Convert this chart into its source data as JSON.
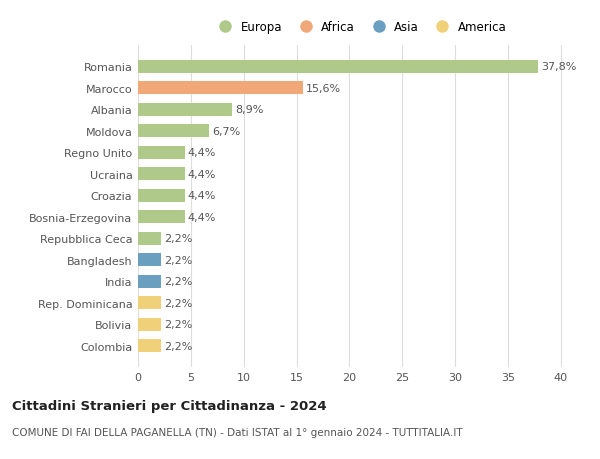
{
  "countries": [
    "Romania",
    "Marocco",
    "Albania",
    "Moldova",
    "Regno Unito",
    "Ucraina",
    "Croazia",
    "Bosnia-Erzegovina",
    "Repubblica Ceca",
    "Bangladesh",
    "India",
    "Rep. Dominicana",
    "Bolivia",
    "Colombia"
  ],
  "values": [
    37.8,
    15.6,
    8.9,
    6.7,
    4.4,
    4.4,
    4.4,
    4.4,
    2.2,
    2.2,
    2.2,
    2.2,
    2.2,
    2.2
  ],
  "labels": [
    "37,8%",
    "15,6%",
    "8,9%",
    "6,7%",
    "4,4%",
    "4,4%",
    "4,4%",
    "4,4%",
    "2,2%",
    "2,2%",
    "2,2%",
    "2,2%",
    "2,2%",
    "2,2%"
  ],
  "colors": [
    "#aec98a",
    "#f0a878",
    "#aec98a",
    "#aec98a",
    "#aec98a",
    "#aec98a",
    "#aec98a",
    "#aec98a",
    "#aec98a",
    "#6a9fc0",
    "#6a9fc0",
    "#f0d078",
    "#f0d078",
    "#f0d078"
  ],
  "legend_labels": [
    "Europa",
    "Africa",
    "Asia",
    "America"
  ],
  "legend_colors": [
    "#aec98a",
    "#f0a878",
    "#6a9fc0",
    "#f0d078"
  ],
  "title": "Cittadini Stranieri per Cittadinanza - 2024",
  "subtitle": "COMUNE DI FAI DELLA PAGANELLA (TN) - Dati ISTAT al 1° gennaio 2024 - TUTTITALIA.IT",
  "xlim": [
    0,
    42
  ],
  "xticks": [
    0,
    5,
    10,
    15,
    20,
    25,
    30,
    35,
    40
  ],
  "bg_color": "#ffffff",
  "grid_color": "#dddddd",
  "bar_height": 0.6,
  "label_fontsize": 8,
  "tick_fontsize": 8,
  "title_fontsize": 9.5,
  "subtitle_fontsize": 7.5
}
